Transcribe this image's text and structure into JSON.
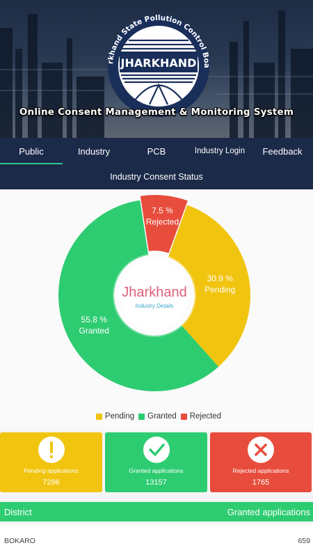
{
  "header": {
    "org_arc_text": "Jharkhand State Pollution Control Board",
    "logo_text": "JHARKHAND",
    "subtitle": "Online Consent Management & Monitoring System"
  },
  "nav": {
    "tabs": [
      {
        "label": "Public",
        "active": true
      },
      {
        "label": "Industry",
        "active": false
      },
      {
        "label": "PCB",
        "active": false
      },
      {
        "label": "Industry Login",
        "active": false
      },
      {
        "label": "Feedback",
        "active": false
      }
    ]
  },
  "status_title": "Industry Consent Status",
  "chart_data": {
    "type": "pie",
    "center_title": "Jharkhand",
    "center_subtitle": "Industry Details",
    "slices": [
      {
        "name": "Pending",
        "value": 30.9,
        "label": "30.9 %",
        "color": "#f1c40f"
      },
      {
        "name": "Granted",
        "value": 55.8,
        "label": "55.8 %",
        "color": "#2ecc71"
      },
      {
        "name": "Rejected",
        "value": 7.5,
        "label": "7.5 %",
        "color": "#e74c3c"
      }
    ],
    "legend": [
      "Pending",
      "Granted",
      "Rejected"
    ],
    "legend_placement": "bottom"
  },
  "cards": [
    {
      "label": "Pending applications",
      "value": "7296",
      "color": "#f1c40f",
      "icon": "exclamation-icon"
    },
    {
      "label": "Granted applications",
      "value": "13157",
      "color": "#2ecc71",
      "icon": "checkmark-icon"
    },
    {
      "label": "Rejected applications",
      "value": "1765",
      "color": "#e74c3c",
      "icon": "cross-icon"
    }
  ],
  "table": {
    "col_district": "District",
    "col_granted": "Granted applications",
    "rows": [
      {
        "district": "BOKARO",
        "granted": "659"
      }
    ]
  }
}
